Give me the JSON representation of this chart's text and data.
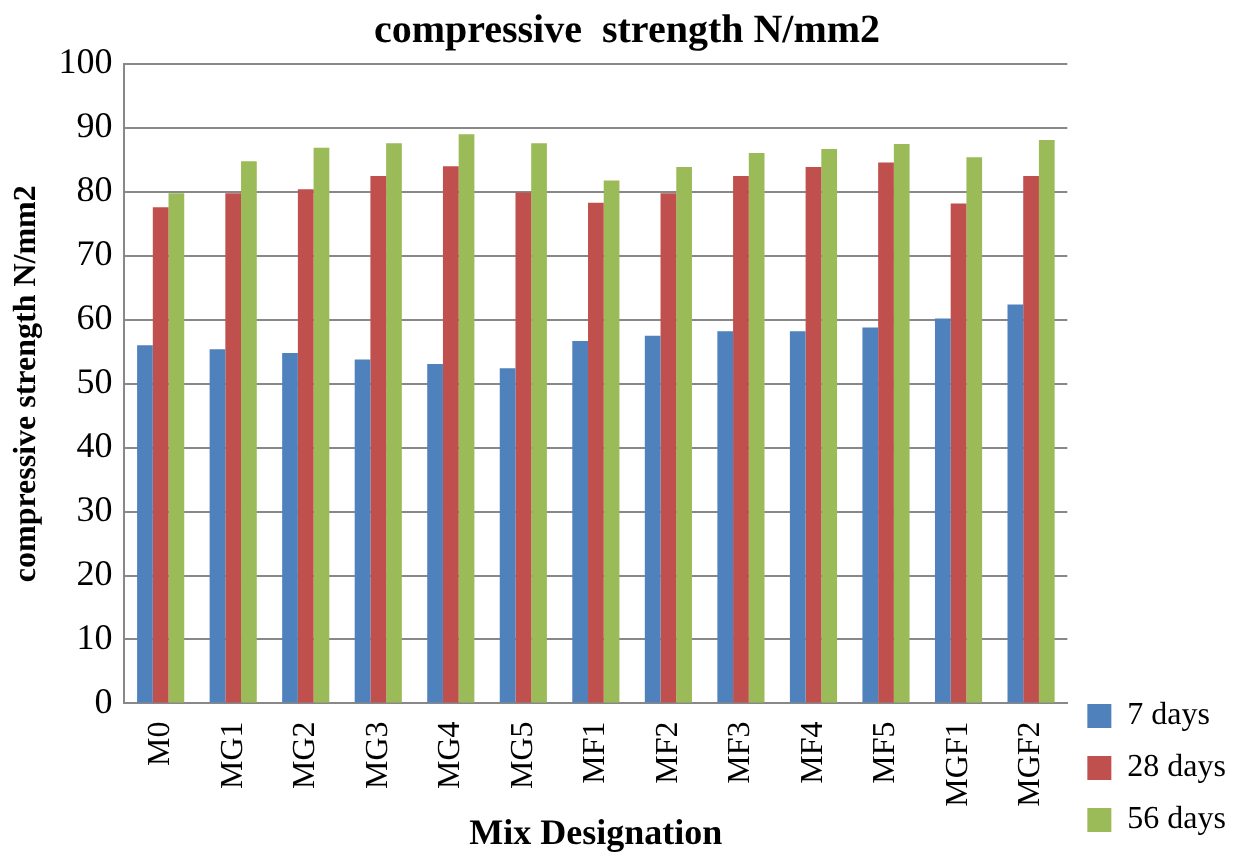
{
  "chart_data": {
    "type": "bar",
    "title": "compressive  strength N/mm2",
    "xlabel": "Mix Designation",
    "ylabel": "compressive strength N/mm2",
    "categories": [
      "M0",
      "MG1",
      "MG2",
      "MG3",
      "MG4",
      "MG5",
      "MF1",
      "MF2",
      "MF3",
      "MF4",
      "MF5",
      "MGF1",
      "MGF2"
    ],
    "series": [
      {
        "name": "7 days",
        "color": "#4f81bd",
        "values": [
          56,
          55.4,
          54.8,
          53.8,
          53.1,
          52.4,
          56.7,
          57.5,
          58.2,
          58.2,
          58.8,
          60.2,
          62.4
        ]
      },
      {
        "name": "28 days",
        "color": "#c0504d",
        "values": [
          77.6,
          79.8,
          80.4,
          82.5,
          84,
          79.9,
          78.3,
          79.8,
          82.5,
          83.9,
          84.6,
          78.2,
          82.5
        ]
      },
      {
        "name": "56 days",
        "color": "#9bbb59",
        "values": [
          79.8,
          84.8,
          86.9,
          87.6,
          89,
          87.6,
          81.8,
          83.9,
          86.1,
          86.7,
          87.5,
          85.4,
          88.1
        ]
      }
    ],
    "ylim": [
      0,
      100
    ],
    "yticks": [
      0,
      10,
      20,
      30,
      40,
      50,
      60,
      70,
      80,
      90,
      100
    ],
    "grid": "y",
    "legend": "right"
  }
}
